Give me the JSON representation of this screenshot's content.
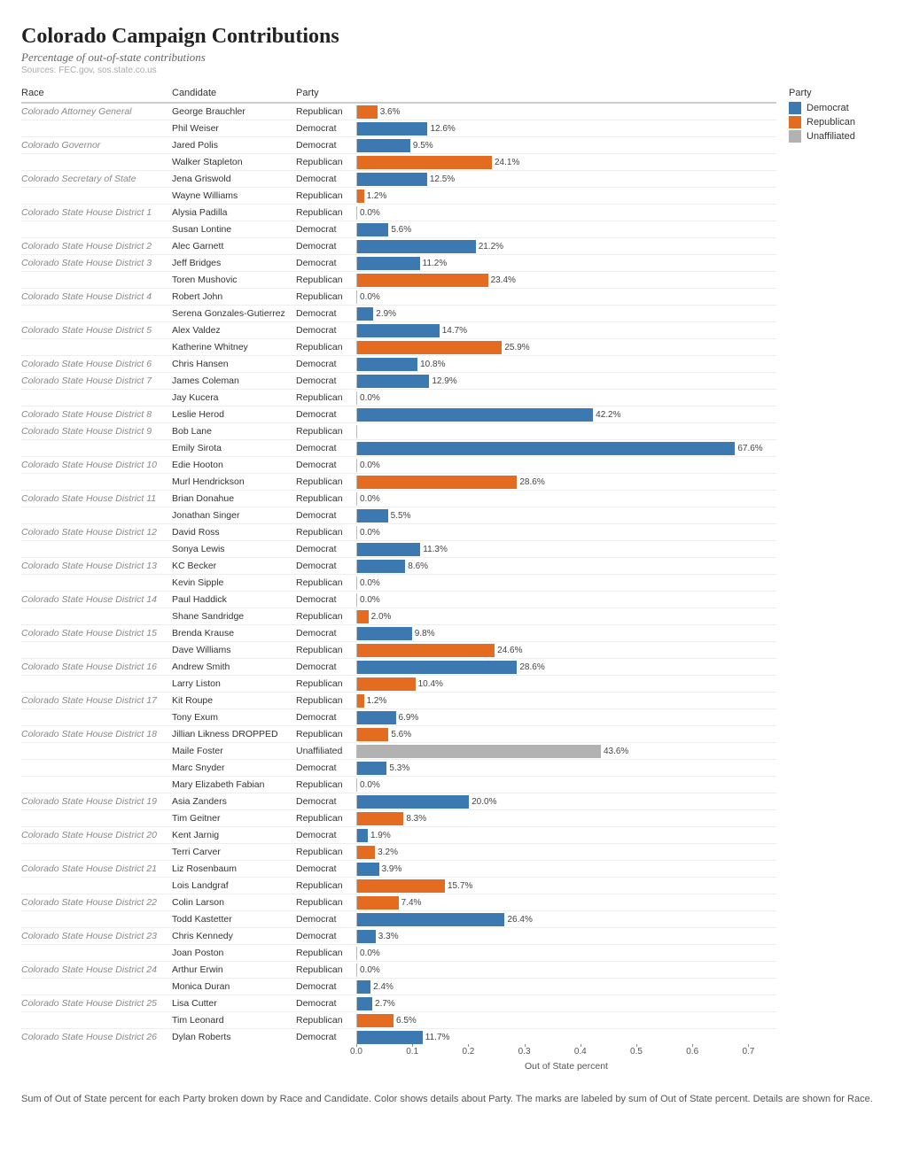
{
  "title": "Colorado Campaign Contributions",
  "subtitle": "Percentage of out-of-state contributions",
  "sources": "Sources: FEC.gov, sos.state.co.us",
  "legend": {
    "title": "Party",
    "items": [
      {
        "label": "Democrat",
        "color": "#3b79b0"
      },
      {
        "label": "Republican",
        "color": "#e36c21"
      },
      {
        "label": "Unaffiliated",
        "color": "#b2b2b2"
      }
    ]
  },
  "columns": {
    "race": "Race",
    "candidate": "Candidate",
    "party": "Party"
  },
  "axis": {
    "label": "Out of State percent",
    "max": 0.75,
    "ticks": [
      0.0,
      0.1,
      0.2,
      0.3,
      0.4,
      0.5,
      0.6,
      0.7
    ],
    "tick_labels": [
      "0.0",
      "0.1",
      "0.2",
      "0.3",
      "0.4",
      "0.5",
      "0.6",
      "0.7"
    ]
  },
  "party_colors": {
    "Democrat": "#3b79b0",
    "Republican": "#e36c21",
    "Unaffiliated": "#b2b2b2"
  },
  "rows": [
    {
      "race": "Colorado Attorney General",
      "candidate": "George Brauchler",
      "party": "Republican",
      "value": 0.036,
      "label": "3.6%"
    },
    {
      "race": "",
      "candidate": "Phil Weiser",
      "party": "Democrat",
      "value": 0.126,
      "label": "12.6%"
    },
    {
      "race": "Colorado Governor",
      "candidate": "Jared Polis",
      "party": "Democrat",
      "value": 0.095,
      "label": "9.5%"
    },
    {
      "race": "",
      "candidate": "Walker Stapleton",
      "party": "Republican",
      "value": 0.241,
      "label": "24.1%"
    },
    {
      "race": "Colorado Secretary of State",
      "candidate": "Jena Griswold",
      "party": "Democrat",
      "value": 0.125,
      "label": "12.5%"
    },
    {
      "race": "",
      "candidate": "Wayne Williams",
      "party": "Republican",
      "value": 0.012,
      "label": "1.2%"
    },
    {
      "race": "Colorado State House District 1",
      "candidate": "Alysia Padilla",
      "party": "Republican",
      "value": 0.0,
      "label": "0.0%"
    },
    {
      "race": "",
      "candidate": "Susan Lontine",
      "party": "Democrat",
      "value": 0.056,
      "label": "5.6%"
    },
    {
      "race": "Colorado State House District 2",
      "candidate": "Alec Garnett",
      "party": "Democrat",
      "value": 0.212,
      "label": "21.2%"
    },
    {
      "race": "Colorado State House District 3",
      "candidate": "Jeff Bridges",
      "party": "Democrat",
      "value": 0.112,
      "label": "11.2%"
    },
    {
      "race": "",
      "candidate": "Toren Mushovic",
      "party": "Republican",
      "value": 0.234,
      "label": "23.4%"
    },
    {
      "race": "Colorado State House District 4",
      "candidate": "Robert John",
      "party": "Republican",
      "value": 0.0,
      "label": "0.0%"
    },
    {
      "race": "",
      "candidate": "Serena Gonzales-Gutierrez",
      "party": "Democrat",
      "value": 0.029,
      "label": "2.9%"
    },
    {
      "race": "Colorado State House District 5",
      "candidate": "Alex Valdez",
      "party": "Democrat",
      "value": 0.147,
      "label": "14.7%"
    },
    {
      "race": "",
      "candidate": "Katherine Whitney",
      "party": "Republican",
      "value": 0.259,
      "label": "25.9%"
    },
    {
      "race": "Colorado State House District 6",
      "candidate": "Chris Hansen",
      "party": "Democrat",
      "value": 0.108,
      "label": "10.8%"
    },
    {
      "race": "Colorado State House District 7",
      "candidate": "James Coleman",
      "party": "Democrat",
      "value": 0.129,
      "label": "12.9%"
    },
    {
      "race": "",
      "candidate": "Jay Kucera",
      "party": "Republican",
      "value": 0.0,
      "label": "0.0%"
    },
    {
      "race": "Colorado State House District 8",
      "candidate": "Leslie Herod",
      "party": "Democrat",
      "value": 0.422,
      "label": "42.2%"
    },
    {
      "race": "Colorado State House District 9",
      "candidate": "Bob Lane",
      "party": "Republican",
      "value": null,
      "label": ""
    },
    {
      "race": "",
      "candidate": "Emily Sirota",
      "party": "Democrat",
      "value": 0.676,
      "label": "67.6%"
    },
    {
      "race": "Colorado State House District 10",
      "candidate": "Edie Hooton",
      "party": "Democrat",
      "value": 0.0,
      "label": "0.0%"
    },
    {
      "race": "",
      "candidate": "Murl Hendrickson",
      "party": "Republican",
      "value": 0.286,
      "label": "28.6%"
    },
    {
      "race": "Colorado State House District 11",
      "candidate": "Brian Donahue",
      "party": "Republican",
      "value": 0.0,
      "label": "0.0%"
    },
    {
      "race": "",
      "candidate": "Jonathan Singer",
      "party": "Democrat",
      "value": 0.055,
      "label": "5.5%"
    },
    {
      "race": "Colorado State House District 12",
      "candidate": "David Ross",
      "party": "Republican",
      "value": 0.0,
      "label": "0.0%"
    },
    {
      "race": "",
      "candidate": "Sonya Lewis",
      "party": "Democrat",
      "value": 0.113,
      "label": "11.3%"
    },
    {
      "race": "Colorado State House District 13",
      "candidate": "KC Becker",
      "party": "Democrat",
      "value": 0.086,
      "label": "8.6%"
    },
    {
      "race": "",
      "candidate": "Kevin Sipple",
      "party": "Republican",
      "value": 0.0,
      "label": "0.0%"
    },
    {
      "race": "Colorado State House District 14",
      "candidate": "Paul Haddick",
      "party": "Democrat",
      "value": 0.0,
      "label": "0.0%"
    },
    {
      "race": "",
      "candidate": "Shane Sandridge",
      "party": "Republican",
      "value": 0.02,
      "label": "2.0%"
    },
    {
      "race": "Colorado State House District 15",
      "candidate": "Brenda Krause",
      "party": "Democrat",
      "value": 0.098,
      "label": "9.8%"
    },
    {
      "race": "",
      "candidate": "Dave Williams",
      "party": "Republican",
      "value": 0.246,
      "label": "24.6%"
    },
    {
      "race": "Colorado State House District 16",
      "candidate": "Andrew Smith",
      "party": "Democrat",
      "value": 0.286,
      "label": "28.6%"
    },
    {
      "race": "",
      "candidate": "Larry Liston",
      "party": "Republican",
      "value": 0.104,
      "label": "10.4%"
    },
    {
      "race": "Colorado State House District 17",
      "candidate": "Kit Roupe",
      "party": "Republican",
      "value": 0.012,
      "label": "1.2%"
    },
    {
      "race": "",
      "candidate": "Tony Exum",
      "party": "Democrat",
      "value": 0.069,
      "label": "6.9%"
    },
    {
      "race": "Colorado State House District 18",
      "candidate": "Jillian Likness DROPPED",
      "party": "Republican",
      "value": 0.056,
      "label": "5.6%"
    },
    {
      "race": "",
      "candidate": "Maile Foster",
      "party": "Unaffiliated",
      "value": 0.436,
      "label": "43.6%"
    },
    {
      "race": "",
      "candidate": "Marc Snyder",
      "party": "Democrat",
      "value": 0.053,
      "label": "5.3%"
    },
    {
      "race": "",
      "candidate": "Mary Elizabeth Fabian",
      "party": "Republican",
      "value": 0.0,
      "label": "0.0%"
    },
    {
      "race": "Colorado State House District 19",
      "candidate": "Asia Zanders",
      "party": "Democrat",
      "value": 0.2,
      "label": "20.0%"
    },
    {
      "race": "",
      "candidate": "Tim Geitner",
      "party": "Republican",
      "value": 0.083,
      "label": "8.3%"
    },
    {
      "race": "Colorado State House District 20",
      "candidate": "Kent Jarnig",
      "party": "Democrat",
      "value": 0.019,
      "label": "1.9%"
    },
    {
      "race": "",
      "candidate": "Terri Carver",
      "party": "Republican",
      "value": 0.032,
      "label": "3.2%"
    },
    {
      "race": "Colorado State House District 21",
      "candidate": "Liz Rosenbaum",
      "party": "Democrat",
      "value": 0.039,
      "label": "3.9%"
    },
    {
      "race": "",
      "candidate": "Lois Landgraf",
      "party": "Republican",
      "value": 0.157,
      "label": "15.7%"
    },
    {
      "race": "Colorado State House District 22",
      "candidate": "Colin Larson",
      "party": "Republican",
      "value": 0.074,
      "label": "7.4%"
    },
    {
      "race": "",
      "candidate": "Todd Kastetter",
      "party": "Democrat",
      "value": 0.264,
      "label": "26.4%"
    },
    {
      "race": "Colorado State House District 23",
      "candidate": "Chris Kennedy",
      "party": "Democrat",
      "value": 0.033,
      "label": "3.3%"
    },
    {
      "race": "",
      "candidate": "Joan Poston",
      "party": "Republican",
      "value": 0.0,
      "label": "0.0%"
    },
    {
      "race": "Colorado State House District 24",
      "candidate": "Arthur Erwin",
      "party": "Republican",
      "value": 0.0,
      "label": "0.0%"
    },
    {
      "race": "",
      "candidate": "Monica Duran",
      "party": "Democrat",
      "value": 0.024,
      "label": "2.4%"
    },
    {
      "race": "Colorado State House District 25",
      "candidate": "Lisa Cutter",
      "party": "Democrat",
      "value": 0.027,
      "label": "2.7%"
    },
    {
      "race": "",
      "candidate": "Tim Leonard",
      "party": "Republican",
      "value": 0.065,
      "label": "6.5%"
    },
    {
      "race": "Colorado State House District 26",
      "candidate": "Dylan Roberts",
      "party": "Democrat",
      "value": 0.117,
      "label": "11.7%"
    }
  ],
  "footer": "Sum of Out of State percent for each Party broken down by Race and Candidate.  Color shows details about Party.  The marks are labeled by sum of Out of State percent.  Details are shown for Race."
}
